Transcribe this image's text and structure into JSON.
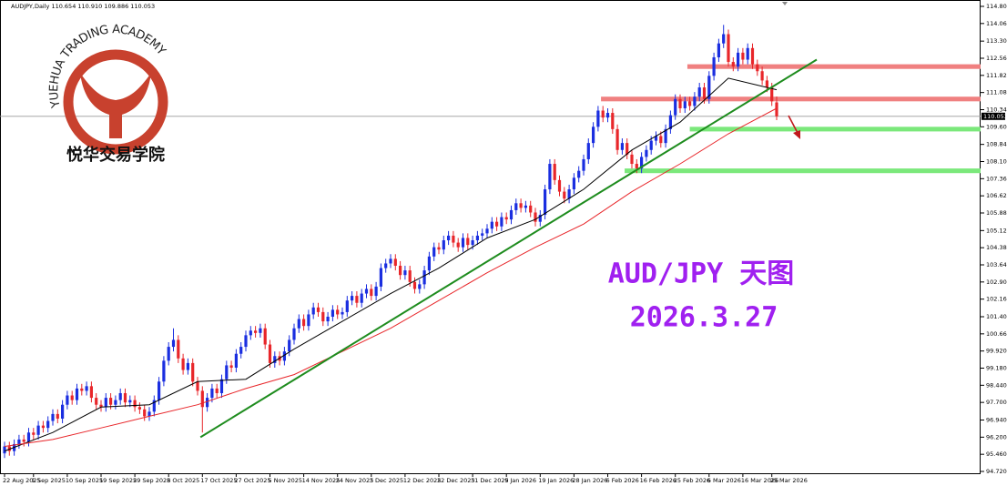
{
  "logo": {
    "arc_text": "YUEHUA TRADING ACADEMY",
    "name": "悦华交易学院"
  },
  "chart_data": {
    "type": "candlestick",
    "header": "AUDJPY,Daily  110.654 110.910 109.886 110.053",
    "title": "AUD/JPY 天图",
    "subtitle": "2026.3.27",
    "up_color": "#1a2ee0",
    "down_color": "#e8262a",
    "categories": [
      "22 Aug 2025",
      null,
      null,
      null,
      null,
      null,
      "1 Sep 2025",
      null,
      null,
      null,
      null,
      null,
      null,
      "10 Sep 2025",
      null,
      null,
      null,
      null,
      null,
      null,
      "19 Sep 2025",
      null,
      null,
      null,
      null,
      null,
      null,
      "29 Sep 2025",
      null,
      null,
      null,
      null,
      null,
      null,
      "8 Oct 2025",
      null,
      null,
      null,
      null,
      null,
      null,
      "17 Oct 2025",
      null,
      null,
      null,
      null,
      null,
      null,
      "27 Oct 2025",
      null,
      null,
      null,
      null,
      null,
      null,
      "5 Nov 2025",
      null,
      null,
      null,
      null,
      null,
      null,
      "14 Nov 2025",
      null,
      null,
      null,
      null,
      null,
      null,
      "24 Nov 2025",
      null,
      null,
      null,
      null,
      null,
      null,
      "3 Dec 2025",
      null,
      null,
      null,
      null,
      null,
      null,
      "12 Dec 2025",
      null,
      null,
      null,
      null,
      null,
      null,
      "22 Dec 2025",
      null,
      null,
      null,
      null,
      null,
      null,
      "31 Dec 2025",
      null,
      null,
      null,
      null,
      null,
      null,
      "9 Jan 2026",
      null,
      null,
      null,
      null,
      null,
      null,
      "19 Jan 2026",
      null,
      null,
      null,
      null,
      null,
      null,
      "28 Jan 2026",
      null,
      null,
      null,
      null,
      null,
      null,
      "6 Feb 2026",
      null,
      null,
      null,
      null,
      null,
      null,
      "16 Feb 2026",
      null,
      null,
      null,
      null,
      null,
      null,
      "25 Feb 2026",
      null,
      null,
      null,
      null,
      null,
      null,
      "6 Mar 2026",
      null,
      null,
      null,
      null,
      null,
      null,
      "16 Mar 2026",
      null,
      null,
      null,
      null,
      null,
      "25 Mar 2026",
      null
    ],
    "open": [
      95.5,
      95.8,
      95.6,
      95.9,
      96.1,
      96.0,
      96.4,
      96.3,
      96.7,
      96.6,
      96.9,
      97.2,
      97.0,
      97.6,
      98.0,
      97.8,
      98.3,
      98.2,
      98.4,
      97.9,
      97.6,
      97.5,
      97.9,
      97.6,
      97.8,
      98.1,
      97.7,
      97.8,
      97.5,
      97.4,
      97.1,
      97.3,
      97.8,
      98.6,
      99.5,
      100.1,
      100.4,
      99.6,
      99.1,
      99.4,
      98.6,
      98.2,
      97.5,
      97.9,
      98.3,
      98.1,
      98.7,
      99.3,
      99.2,
      99.8,
      100.1,
      100.6,
      100.8,
      100.7,
      100.9,
      100.2,
      99.4,
      99.7,
      99.5,
      99.9,
      100.4,
      100.9,
      101.3,
      101.0,
      101.5,
      101.8,
      101.6,
      101.2,
      101.4,
      101.7,
      101.5,
      101.6,
      102.1,
      102.3,
      102.0,
      102.4,
      102.6,
      102.3,
      102.7,
      103.5,
      103.7,
      103.9,
      103.6,
      103.2,
      103.4,
      102.9,
      102.6,
      102.8,
      103.4,
      104.0,
      104.4,
      104.3,
      104.7,
      104.9,
      104.6,
      104.4,
      104.8,
      104.5,
      104.7,
      104.9,
      105.0,
      105.2,
      105.5,
      105.3,
      105.7,
      105.6,
      106.0,
      106.3,
      106.1,
      106.2,
      105.9,
      105.5,
      105.8,
      106.9,
      108.0,
      107.3,
      106.8,
      106.5,
      106.9,
      107.4,
      107.7,
      108.2,
      108.9,
      109.6,
      110.3,
      110.0,
      110.2,
      109.5,
      108.6,
      108.9,
      108.4,
      108.0,
      107.8,
      108.3,
      108.6,
      109.0,
      109.2,
      108.9,
      109.5,
      110.1,
      110.8,
      110.4,
      110.7,
      110.5,
      110.9,
      111.3,
      110.8,
      111.8,
      112.6,
      113.2,
      113.6,
      112.4,
      112.2,
      112.8,
      112.5,
      113.0,
      112.3,
      112.0,
      111.6,
      111.3,
      110.654
    ],
    "high": [
      96.0,
      96.0,
      96.1,
      96.3,
      96.3,
      96.6,
      96.6,
      96.9,
      96.9,
      97.1,
      97.4,
      97.4,
      97.8,
      98.2,
      98.2,
      98.5,
      98.5,
      98.6,
      98.6,
      98.1,
      97.8,
      98.1,
      98.1,
      98.0,
      98.3,
      98.3,
      98.0,
      98.0,
      97.7,
      97.6,
      97.5,
      98.0,
      98.8,
      99.7,
      100.3,
      100.9,
      100.6,
      99.8,
      99.6,
      99.6,
      98.8,
      98.4,
      98.1,
      98.5,
      98.5,
      98.9,
      99.5,
      99.5,
      100.0,
      100.3,
      100.8,
      101.0,
      101.0,
      101.1,
      101.1,
      100.4,
      99.9,
      99.9,
      100.1,
      100.6,
      101.1,
      101.5,
      101.5,
      101.7,
      102.0,
      102.0,
      101.8,
      101.6,
      101.9,
      101.9,
      101.8,
      102.3,
      102.5,
      102.5,
      102.6,
      102.8,
      102.8,
      102.9,
      103.7,
      103.9,
      104.1,
      104.1,
      103.8,
      103.6,
      103.6,
      103.1,
      103.0,
      103.6,
      104.2,
      104.6,
      104.6,
      104.9,
      105.1,
      105.1,
      104.8,
      105.0,
      105.0,
      104.9,
      105.1,
      105.2,
      105.4,
      105.7,
      105.7,
      105.9,
      105.9,
      106.2,
      106.5,
      106.5,
      106.4,
      106.4,
      106.1,
      106.0,
      107.1,
      108.2,
      108.2,
      107.5,
      107.0,
      107.1,
      107.6,
      107.9,
      108.4,
      109.1,
      109.8,
      110.5,
      110.5,
      110.4,
      110.4,
      109.7,
      109.1,
      109.1,
      108.6,
      108.2,
      108.5,
      108.8,
      109.2,
      109.4,
      109.4,
      109.7,
      110.3,
      111.0,
      111.0,
      110.9,
      110.9,
      111.1,
      111.5,
      111.5,
      112.0,
      112.8,
      113.4,
      114.0,
      113.8,
      112.6,
      113.0,
      113.0,
      113.2,
      113.2,
      112.5,
      112.2,
      111.8,
      111.5,
      110.91
    ],
    "low": [
      95.3,
      95.4,
      95.4,
      95.7,
      95.8,
      95.8,
      96.1,
      96.1,
      96.4,
      96.4,
      96.7,
      96.8,
      96.8,
      97.4,
      97.6,
      97.6,
      98.0,
      98.0,
      97.7,
      97.4,
      97.3,
      97.3,
      97.4,
      97.4,
      97.6,
      97.5,
      97.5,
      97.3,
      97.2,
      96.9,
      96.9,
      97.1,
      97.6,
      98.4,
      99.3,
      99.9,
      99.4,
      98.9,
      98.9,
      98.4,
      98.0,
      96.4,
      97.3,
      97.7,
      97.9,
      97.9,
      98.5,
      99.0,
      99.0,
      99.6,
      99.9,
      100.4,
      100.5,
      100.5,
      100.0,
      99.2,
      99.2,
      99.3,
      99.3,
      99.7,
      100.2,
      100.7,
      100.8,
      100.8,
      101.3,
      101.4,
      101.0,
      101.0,
      101.2,
      101.3,
      101.3,
      101.4,
      101.9,
      101.8,
      101.8,
      102.2,
      102.1,
      102.1,
      102.5,
      103.3,
      103.5,
      103.4,
      103.0,
      103.0,
      102.7,
      102.4,
      102.4,
      102.6,
      103.2,
      103.8,
      104.1,
      104.1,
      104.5,
      104.4,
      104.2,
      104.2,
      104.3,
      104.3,
      104.5,
      104.7,
      104.8,
      105.0,
      105.1,
      105.1,
      105.4,
      105.4,
      105.8,
      105.9,
      105.9,
      105.7,
      105.3,
      105.3,
      105.6,
      106.7,
      107.1,
      106.6,
      106.3,
      106.3,
      106.7,
      107.2,
      107.5,
      108.0,
      108.7,
      109.4,
      109.8,
      109.8,
      109.3,
      108.4,
      108.4,
      108.2,
      107.8,
      107.6,
      107.6,
      108.1,
      108.4,
      108.8,
      108.7,
      108.7,
      109.3,
      109.9,
      110.2,
      110.2,
      110.3,
      110.3,
      110.7,
      110.6,
      110.6,
      111.6,
      112.4,
      113.0,
      112.2,
      112.0,
      112.0,
      112.3,
      112.3,
      112.1,
      111.8,
      111.4,
      111.1,
      110.5,
      109.886
    ],
    "close": [
      95.8,
      95.6,
      95.9,
      96.1,
      96.0,
      96.4,
      96.3,
      96.7,
      96.6,
      96.9,
      97.2,
      97.0,
      97.6,
      98.0,
      97.8,
      98.3,
      98.2,
      98.4,
      97.9,
      97.6,
      97.5,
      97.9,
      97.6,
      97.8,
      98.1,
      97.7,
      97.8,
      97.5,
      97.4,
      97.1,
      97.3,
      97.8,
      98.6,
      99.5,
      100.1,
      100.4,
      99.6,
      99.1,
      99.4,
      98.6,
      98.2,
      97.5,
      97.9,
      98.3,
      98.1,
      98.7,
      99.3,
      99.2,
      99.8,
      100.1,
      100.6,
      100.8,
      100.7,
      100.9,
      100.2,
      99.4,
      99.7,
      99.5,
      99.9,
      100.4,
      100.9,
      101.3,
      101.0,
      101.5,
      101.8,
      101.6,
      101.2,
      101.4,
      101.7,
      101.5,
      101.6,
      102.1,
      102.3,
      102.0,
      102.4,
      102.6,
      102.3,
      102.7,
      103.5,
      103.7,
      103.9,
      103.6,
      103.2,
      103.4,
      102.9,
      102.6,
      102.8,
      103.4,
      104.0,
      104.4,
      104.3,
      104.7,
      104.9,
      104.6,
      104.4,
      104.8,
      104.5,
      104.7,
      104.9,
      105.0,
      105.2,
      105.5,
      105.3,
      105.7,
      105.6,
      106.0,
      106.3,
      106.1,
      106.2,
      105.9,
      105.5,
      105.8,
      106.9,
      108.0,
      107.3,
      106.8,
      106.5,
      106.9,
      107.4,
      107.7,
      108.2,
      108.9,
      109.6,
      110.3,
      110.0,
      110.2,
      109.5,
      108.6,
      108.9,
      108.4,
      108.0,
      107.8,
      108.3,
      108.6,
      109.0,
      109.2,
      108.9,
      109.5,
      110.1,
      110.8,
      110.4,
      110.7,
      110.5,
      110.9,
      111.3,
      110.8,
      111.8,
      112.6,
      113.2,
      113.6,
      112.4,
      112.2,
      112.8,
      112.5,
      113.0,
      112.3,
      112.0,
      111.6,
      111.3,
      110.7,
      110.053
    ],
    "lines": [
      {
        "color": "#000000",
        "x": [
          0,
          10,
          20,
          30,
          40,
          50,
          60,
          70,
          80,
          90,
          100,
          110,
          120,
          130,
          140,
          150,
          160
        ],
        "values": [
          95.6,
          96.4,
          97.5,
          97.6,
          98.6,
          98.7,
          100.0,
          101.2,
          102.4,
          103.5,
          104.8,
          105.6,
          106.9,
          108.6,
          109.8,
          111.7,
          111.2
        ]
      },
      {
        "color": "#e8262a",
        "x": [
          0,
          10,
          20,
          30,
          40,
          50,
          60,
          70,
          80,
          90,
          100,
          110,
          120,
          130,
          140,
          150,
          160
        ],
        "values": [
          95.8,
          96.1,
          96.6,
          97.1,
          97.6,
          98.3,
          98.9,
          99.9,
          100.9,
          102.1,
          103.3,
          104.4,
          105.4,
          106.8,
          108.0,
          109.3,
          110.4
        ]
      }
    ],
    "trendline": {
      "color": "#1e8c1e",
      "x": [
        40.6,
        168.3
      ],
      "values": [
        96.2,
        112.5
      ]
    },
    "zones": [
      {
        "color": "#f08080",
        "start": 141.5,
        "range": [
          112.1,
          112.3
        ]
      },
      {
        "color": "#f08080",
        "start": 123.6,
        "range": [
          110.7,
          110.9
        ]
      },
      {
        "color": "#7be87b",
        "start": 142,
        "range": [
          109.4,
          109.6
        ]
      },
      {
        "color": "#7be87b",
        "start": 128.5,
        "range": [
          107.6,
          107.8
        ]
      }
    ],
    "last_price": 110.053,
    "ylim": [
      94.5,
      115.0
    ],
    "yticks": [
      {
        "value": 114.8,
        "label": "114.800"
      },
      {
        "value": 114.06,
        "label": "114.060"
      },
      {
        "value": 113.3,
        "label": "113.300"
      },
      {
        "value": 112.56,
        "label": "112.560"
      },
      {
        "value": 111.82,
        "label": "111.820"
      },
      {
        "value": 111.08,
        "label": "111.080"
      },
      {
        "value": 110.34,
        "label": "110.340"
      },
      {
        "value": 109.6,
        "label": "109.600"
      },
      {
        "value": 108.84,
        "label": "108.840"
      },
      {
        "value": 108.1,
        "label": "108.100"
      },
      {
        "value": 107.36,
        "label": "107.360"
      },
      {
        "value": 106.62,
        "label": "106.620"
      },
      {
        "value": 105.88,
        "label": "105.880"
      },
      {
        "value": 105.12,
        "label": "105.120"
      },
      {
        "value": 104.38,
        "label": "104.380"
      },
      {
        "value": 103.64,
        "label": "103.640"
      },
      {
        "value": 102.9,
        "label": "102.900"
      },
      {
        "value": 102.16,
        "label": "102.160"
      },
      {
        "value": 101.4,
        "label": "101.400"
      },
      {
        "value": 100.66,
        "label": "100.660"
      },
      {
        "value": 99.92,
        "label": "99.920"
      },
      {
        "value": 99.18,
        "label": "99.180"
      },
      {
        "value": 98.44,
        "label": "98.440"
      },
      {
        "value": 97.7,
        "label": "97.700"
      },
      {
        "value": 96.94,
        "label": "96.940"
      },
      {
        "value": 96.2,
        "label": "96.200"
      },
      {
        "value": 95.46,
        "label": "95.460"
      },
      {
        "value": 94.72,
        "label": "94.720"
      }
    ],
    "grid": false
  }
}
